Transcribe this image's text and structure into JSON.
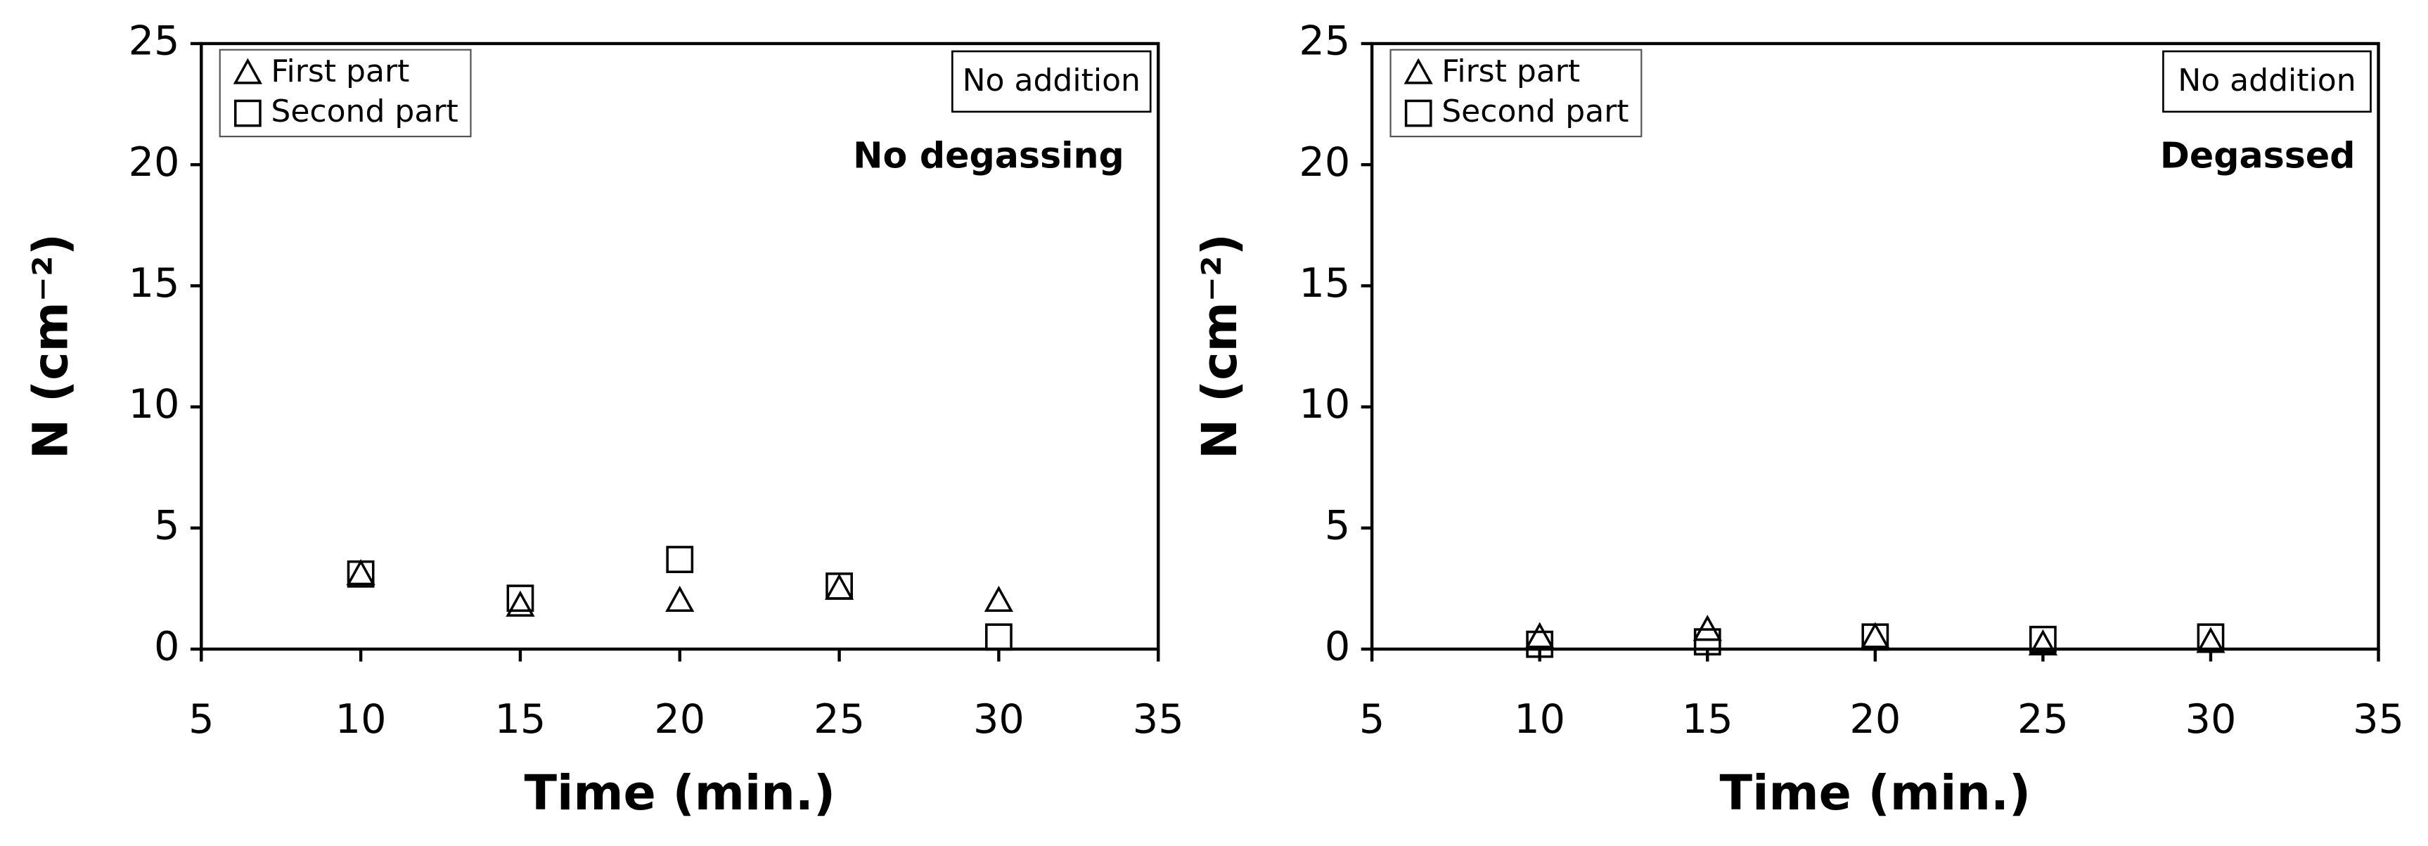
{
  "chart_data": [
    {
      "type": "scatter",
      "x_label": "Time (min.)",
      "y_label": "N (cm⁻²)",
      "xlim": [
        5,
        35
      ],
      "xticks": [
        5,
        10,
        15,
        20,
        25,
        30,
        35
      ],
      "ylim": [
        0,
        25
      ],
      "yticks": [
        0,
        5,
        10,
        15,
        20,
        25
      ],
      "legend": "upper left",
      "box_note": "No addition",
      "note": "No degassing",
      "series": [
        {
          "name": "First part",
          "marker": "triangle",
          "color": "#000000",
          "x": [
            10,
            15,
            20,
            25,
            30
          ],
          "values": [
            3.1,
            1.8,
            2.0,
            2.5,
            2.0
          ]
        },
        {
          "name": "Second part",
          "marker": "square",
          "color": "#000000",
          "x": [
            10,
            15,
            20,
            25,
            30
          ],
          "values": [
            3.1,
            2.1,
            3.7,
            2.6,
            0.5
          ]
        }
      ]
    },
    {
      "type": "scatter",
      "x_label": "Time (min.)",
      "y_label": "N (cm⁻²)",
      "xlim": [
        5,
        35
      ],
      "xticks": [
        5,
        10,
        15,
        20,
        25,
        30,
        35
      ],
      "ylim": [
        0,
        25
      ],
      "yticks": [
        0,
        5,
        10,
        15,
        20,
        25
      ],
      "legend": "upper left",
      "box_note": "No addition",
      "note": "Degassed",
      "series": [
        {
          "name": "First part",
          "marker": "triangle",
          "color": "#000000",
          "x": [
            10,
            15,
            20,
            25,
            30
          ],
          "values": [
            0.5,
            0.8,
            0.5,
            0.2,
            0.3
          ]
        },
        {
          "name": "Second part",
          "marker": "square",
          "color": "#000000",
          "x": [
            10,
            15,
            20,
            25,
            30
          ],
          "values": [
            0.2,
            0.3,
            0.5,
            0.4,
            0.5
          ]
        }
      ]
    }
  ]
}
